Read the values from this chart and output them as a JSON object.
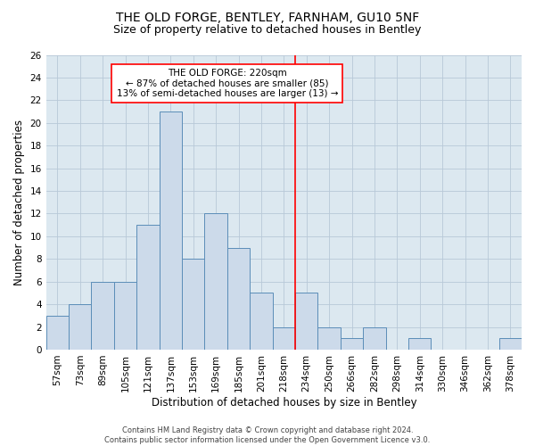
{
  "title": "THE OLD FORGE, BENTLEY, FARNHAM, GU10 5NF",
  "subtitle": "Size of property relative to detached houses in Bentley",
  "xlabel": "Distribution of detached houses by size in Bentley",
  "ylabel": "Number of detached properties",
  "footer_line1": "Contains HM Land Registry data © Crown copyright and database right 2024.",
  "footer_line2": "Contains public sector information licensed under the Open Government Licence v3.0.",
  "categories": [
    "57sqm",
    "73sqm",
    "89sqm",
    "105sqm",
    "121sqm",
    "137sqm",
    "153sqm",
    "169sqm",
    "185sqm",
    "201sqm",
    "218sqm",
    "234sqm",
    "250sqm",
    "266sqm",
    "282sqm",
    "298sqm",
    "314sqm",
    "330sqm",
    "346sqm",
    "362sqm",
    "378sqm"
  ],
  "values": [
    3,
    4,
    6,
    6,
    11,
    21,
    8,
    12,
    9,
    5,
    2,
    5,
    2,
    1,
    2,
    0,
    1,
    0,
    0,
    0,
    1
  ],
  "bar_color": "#ccdaea",
  "bar_edge_color": "#5b8db8",
  "vline_x": 10.5,
  "annotation_line1": "THE OLD FORGE: 220sqm",
  "annotation_line2": "← 87% of detached houses are smaller (85)",
  "annotation_line3": "13% of semi-detached houses are larger (13) →",
  "annotation_box_color": "white",
  "annotation_box_edge_color": "red",
  "vline_color": "red",
  "ylim": [
    0,
    26
  ],
  "yticks": [
    0,
    2,
    4,
    6,
    8,
    10,
    12,
    14,
    16,
    18,
    20,
    22,
    24,
    26
  ],
  "grid_color": "#b8c8d8",
  "background_color": "#dce8f0",
  "title_fontsize": 10,
  "subtitle_fontsize": 9,
  "xlabel_fontsize": 8.5,
  "ylabel_fontsize": 8.5,
  "tick_fontsize": 7.5,
  "annotation_fontsize": 7.5,
  "footer_fontsize": 6
}
